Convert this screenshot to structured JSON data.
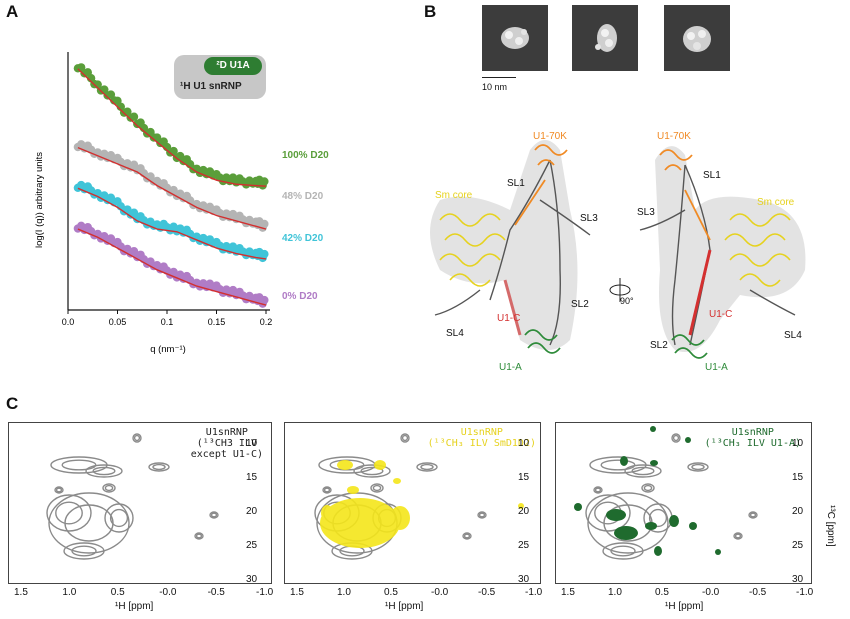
{
  "panels": {
    "a": {
      "letter": "A"
    },
    "b": {
      "letter": "B"
    },
    "c": {
      "letter": "C"
    }
  },
  "saxs": {
    "ylabel": "log(I (q)) arbitrary units",
    "xlabel": "q (nm⁻¹)",
    "legend_top": "²D U1A",
    "legend_bottom": "¹H U1 snRNP",
    "legend_dark_color": "#2e7d32",
    "legend_bg_color": "#c7c7c7",
    "fit_color": "#d32f2f",
    "series_labels": [
      "100% D20",
      "48% D20",
      "42% D20",
      "0% D20"
    ]
  },
  "chart_data": [
    {
      "type": "scatter",
      "title": "",
      "xlabel": "q (nm⁻¹)",
      "ylabel": "log(I (q)) arbitrary units",
      "xlim": [
        0,
        0.2
      ],
      "xticks": [
        "0.0",
        "0.05",
        "0.1",
        "0.15",
        "0.2"
      ],
      "grid": false,
      "legend": "top-right",
      "series": [
        {
          "name": "100% D20",
          "color": "#5a9e3a",
          "x": [
            0.01,
            0.03,
            0.05,
            0.07,
            0.09,
            0.11,
            0.13,
            0.15,
            0.17,
            0.19,
            0.2
          ],
          "y": [
            9.0,
            8.3,
            7.6,
            6.9,
            6.3,
            5.7,
            5.2,
            4.9,
            4.75,
            4.7,
            4.68
          ]
        },
        {
          "name": "48% D20",
          "color": "#b4b4b4",
          "x": [
            0.01,
            0.03,
            0.05,
            0.07,
            0.09,
            0.11,
            0.13,
            0.15,
            0.17,
            0.19,
            0.2
          ],
          "y": [
            6.1,
            5.8,
            5.5,
            5.2,
            4.7,
            4.3,
            3.9,
            3.6,
            3.4,
            3.2,
            3.1
          ]
        },
        {
          "name": "42% D20",
          "color": "#40c4d8",
          "x": [
            0.01,
            0.03,
            0.05,
            0.07,
            0.09,
            0.11,
            0.13,
            0.15,
            0.17,
            0.19,
            0.2
          ],
          "y": [
            4.6,
            4.3,
            3.9,
            3.4,
            3.1,
            3.0,
            2.7,
            2.4,
            2.2,
            2.05,
            2.0
          ]
        },
        {
          "name": "0% D20",
          "color": "#b07cc6",
          "x": [
            0.01,
            0.03,
            0.05,
            0.07,
            0.09,
            0.11,
            0.13,
            0.15,
            0.17,
            0.19,
            0.2
          ],
          "y": [
            3.1,
            2.8,
            2.4,
            2.0,
            1.6,
            1.3,
            1.0,
            0.8,
            0.6,
            0.4,
            0.3
          ]
        }
      ]
    }
  ],
  "em": {
    "scale_label": "10 nm",
    "tile_count": 3
  },
  "structure": {
    "left_labels": [
      "U1-70K",
      "SL1",
      "SL3",
      "Sm core",
      "SL2",
      "U1-C",
      "SL4",
      "U1-A"
    ],
    "right_labels": [
      "U1-70K",
      "SL1",
      "SL3",
      "Sm core",
      "U1-C",
      "SL2",
      "SL4",
      "U1-A"
    ],
    "rotation_label": "90°",
    "colors": {
      "u1_70k": "#f08a24",
      "sm_core": "#e6d21e",
      "u1_c": "#d43030",
      "u1_a": "#2e8b3a",
      "rna": "#555555"
    }
  },
  "nmr": {
    "xlabel": "¹H [ppm]",
    "ylabel": "¹³C [ppm]",
    "xticks": [
      "1.5",
      "1.0",
      "0.5",
      "-0.0",
      "-0.5",
      "-1.0"
    ],
    "yticks": [
      "10",
      "15",
      "20",
      "25",
      "30"
    ],
    "spectra": [
      {
        "title": "U1snRNP",
        "subtitle": "(¹³CH3 ILV",
        "subtitle2": "except U1-C)",
        "overlay_color": "",
        "title_color": "#222222"
      },
      {
        "title": "U1snRNP",
        "subtitle": "(¹³CH₃ ILV SmD1D2)",
        "subtitle2": "",
        "overlay_color": "#f5e61a",
        "title_color": "#e6d21e"
      },
      {
        "title": "U1snRNP",
        "subtitle": "(¹³CH₃ ILV U1-A)",
        "subtitle2": "",
        "overlay_color": "#1f6b2e",
        "title_color": "#1f6b2e"
      }
    ]
  }
}
